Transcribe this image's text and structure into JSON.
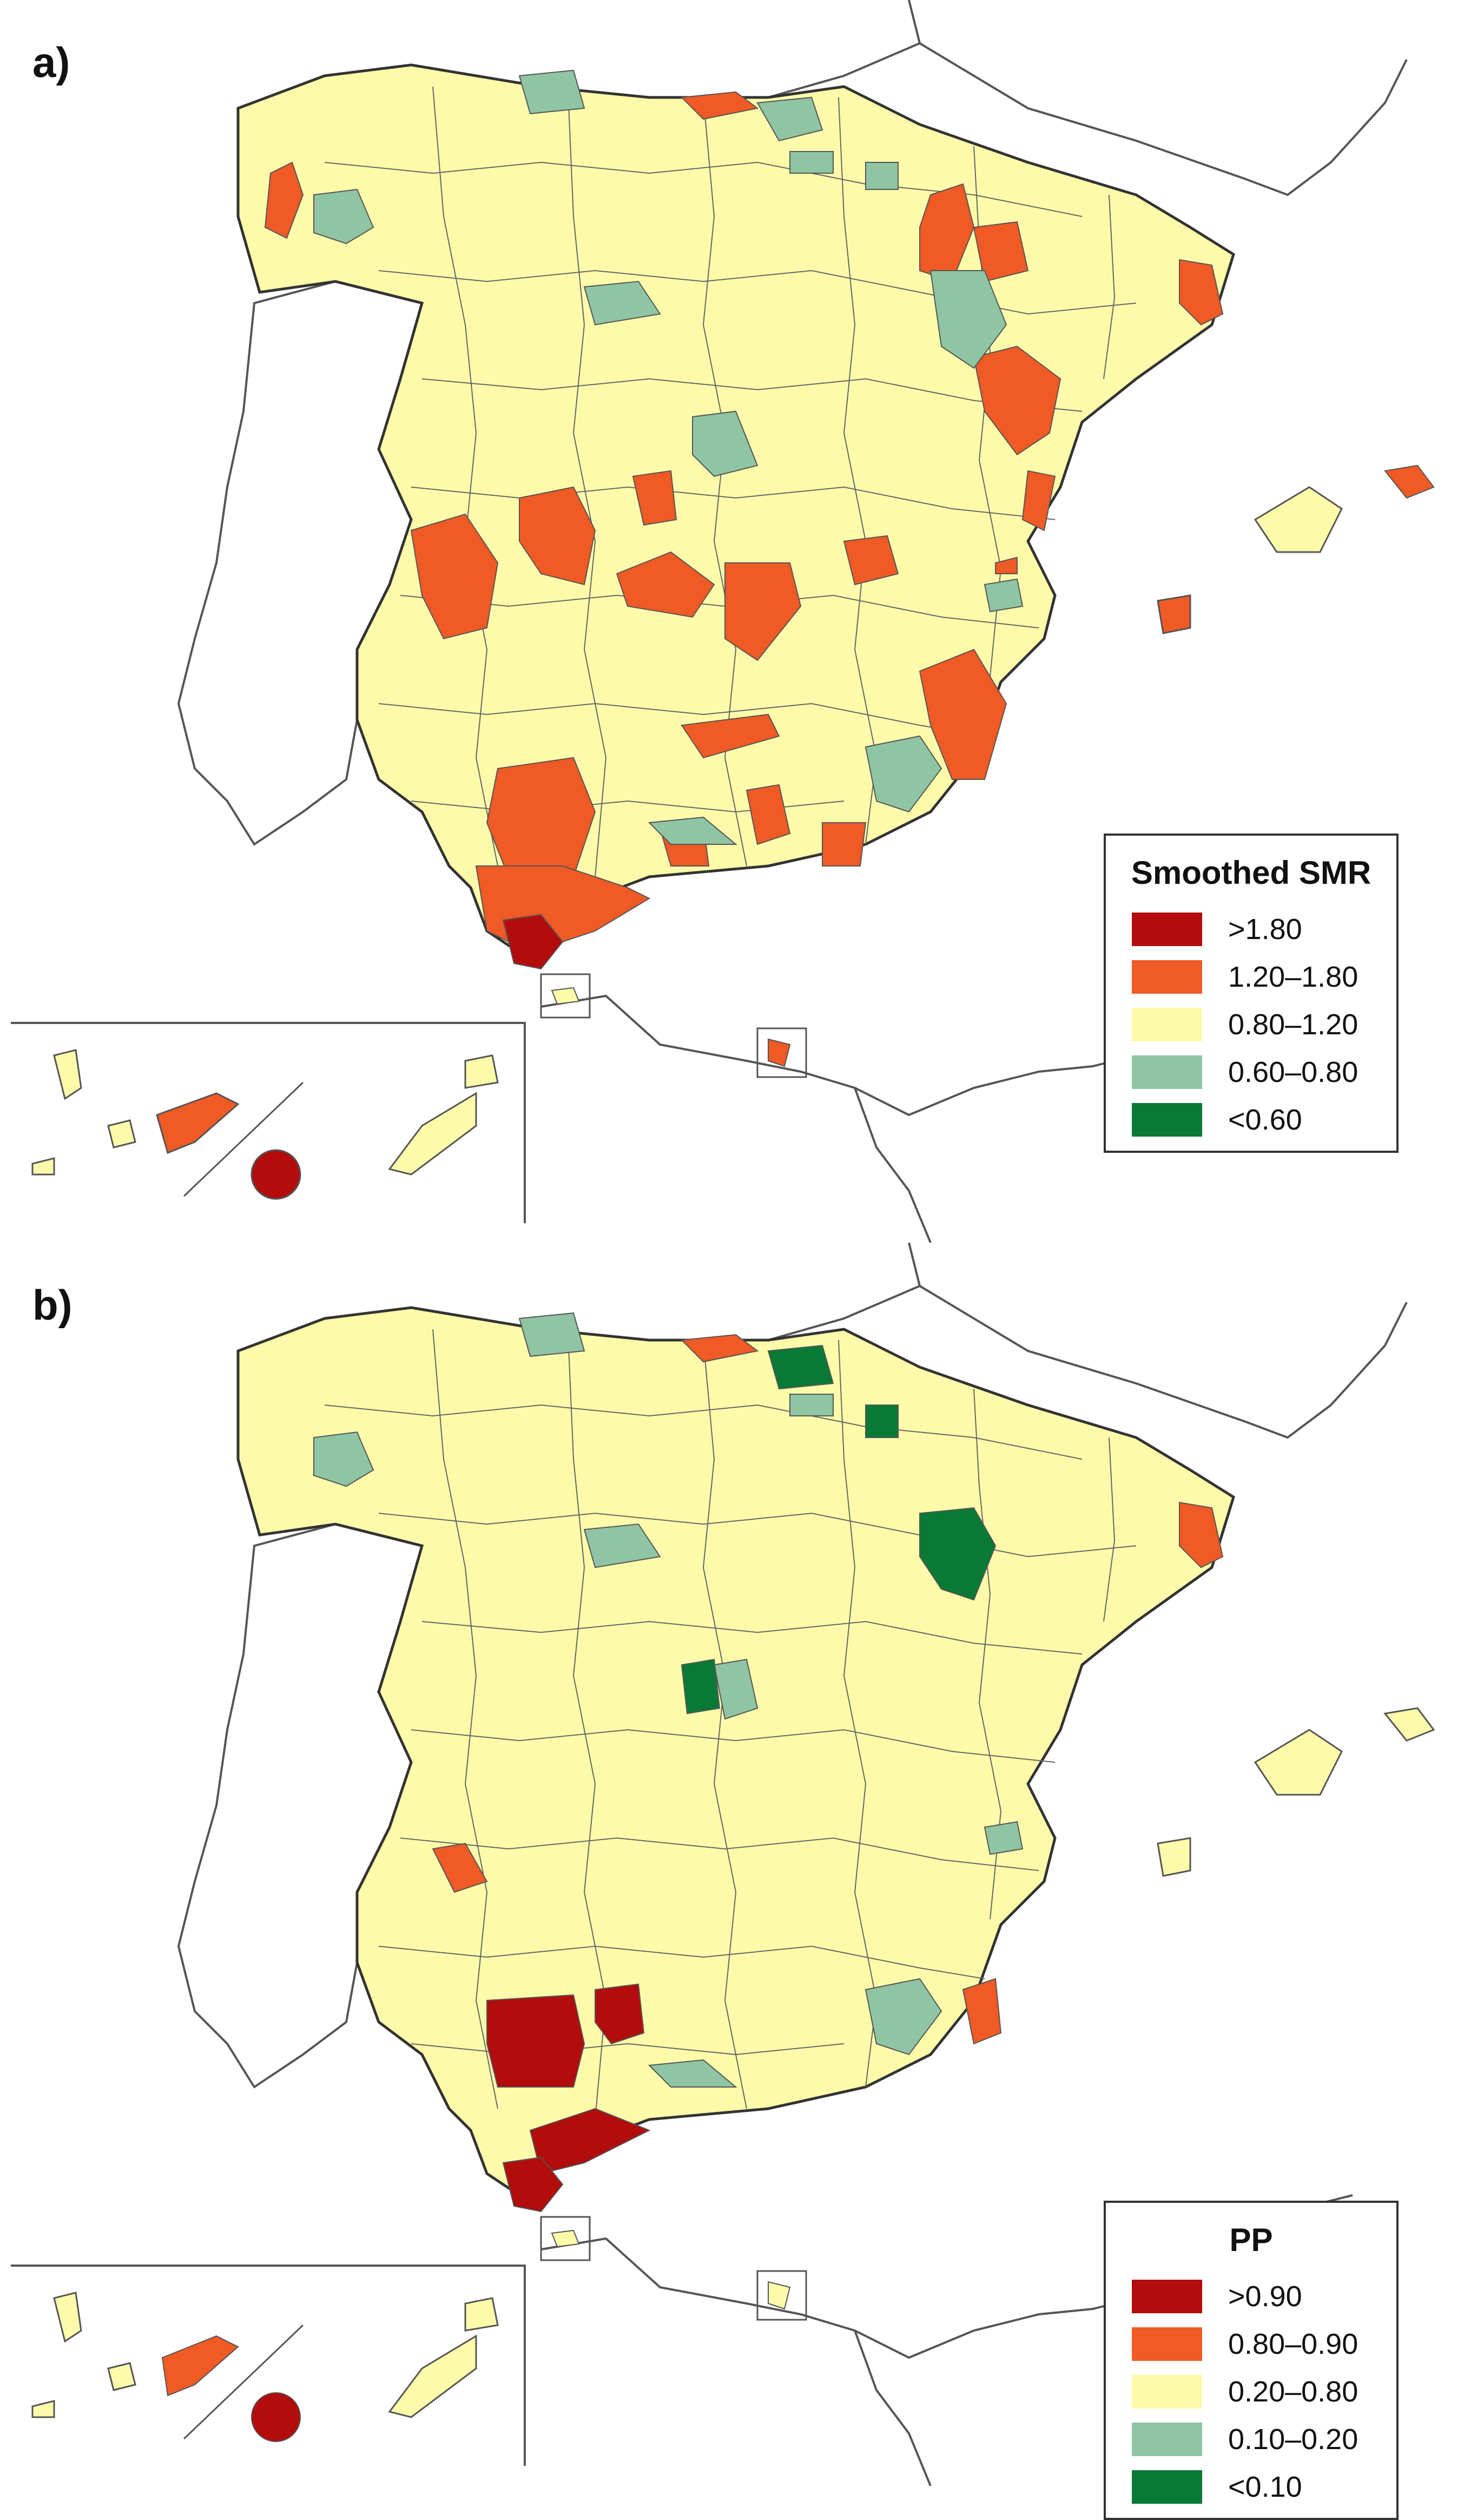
{
  "colors": {
    "very_high": "#b20c0c",
    "high": "#f05a24",
    "mid": "#fdfbaa",
    "low": "#8fc5a3",
    "very_low": "#097a35",
    "border": "#555555",
    "land_other": "#ffffff"
  },
  "panels": [
    {
      "label": "a)",
      "legend": {
        "title": "Smoothed SMR",
        "items": [
          {
            "label": ">1.80",
            "color": "#b20c0c"
          },
          {
            "label": "1.20–1.80",
            "color": "#f05a24"
          },
          {
            "label": "0.80–1.20",
            "color": "#fdfbaa"
          },
          {
            "label": "0.60–0.80",
            "color": "#8fc5a3"
          },
          {
            "label": "<0.60",
            "color": "#097a35"
          }
        ]
      }
    },
    {
      "label": "b)",
      "legend": {
        "title": "PP",
        "items": [
          {
            "label": ">0.90",
            "color": "#b20c0c"
          },
          {
            "label": "0.80–0.90",
            "color": "#f05a24"
          },
          {
            "label": "0.20–0.80",
            "color": "#fdfbaa"
          },
          {
            "label": "0.10–0.20",
            "color": "#8fc5a3"
          },
          {
            "label": "<0.10",
            "color": "#097a35"
          }
        ]
      }
    }
  ]
}
